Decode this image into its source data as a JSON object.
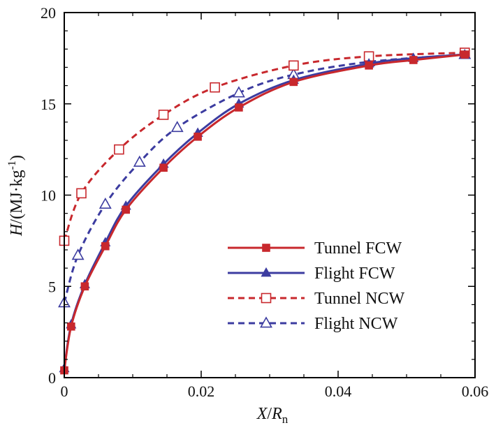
{
  "chart_data": {
    "type": "line",
    "title": "",
    "xlim": [
      0,
      0.06
    ],
    "ylim": [
      0,
      20
    ],
    "x_ticks": [
      0,
      0.02,
      0.04,
      0.06
    ],
    "x_tick_labels": [
      "0",
      "0.02",
      "0.04",
      "0.06"
    ],
    "y_ticks": [
      0,
      5,
      10,
      15,
      20
    ],
    "y_tick_labels": [
      "0",
      "5",
      "10",
      "15",
      "20"
    ],
    "xlabel": {
      "italic": "X",
      "sep": "/",
      "italic2": "R",
      "sub": "n"
    },
    "ylabel": {
      "italic": "H",
      "text": "/(MJ·kg",
      "sup": "-1",
      "close": ")"
    },
    "grid": false,
    "legend_position": "lower-right",
    "series": [
      {
        "name": "Tunnel FCW",
        "color": "#c8282d",
        "dash": "solid",
        "marker": "square-filled",
        "x": [
          0.0,
          0.001,
          0.003,
          0.006,
          0.009,
          0.0145,
          0.0195,
          0.0255,
          0.0335,
          0.0445,
          0.051,
          0.0585
        ],
        "y": [
          0.4,
          2.8,
          5.0,
          7.2,
          9.2,
          11.5,
          13.2,
          14.8,
          16.2,
          17.1,
          17.4,
          17.7
        ]
      },
      {
        "name": "Flight FCW",
        "color": "#3c3ca0",
        "dash": "solid",
        "marker": "triangle-filled",
        "x": [
          0.0,
          0.001,
          0.003,
          0.006,
          0.009,
          0.0145,
          0.0195,
          0.0255,
          0.0335,
          0.0445,
          0.051,
          0.0585
        ],
        "y": [
          0.5,
          2.9,
          5.1,
          7.4,
          9.4,
          11.7,
          13.4,
          15.0,
          16.3,
          17.2,
          17.5,
          17.7
        ]
      },
      {
        "name": "Tunnel NCW",
        "color": "#c8282d",
        "dash": "dashed",
        "marker": "square-open",
        "x": [
          0.0,
          0.0025,
          0.008,
          0.0145,
          0.022,
          0.0335,
          0.0445,
          0.0585
        ],
        "y": [
          7.5,
          10.1,
          12.5,
          14.4,
          15.9,
          17.1,
          17.6,
          17.8
        ]
      },
      {
        "name": "Flight NCW",
        "color": "#3c3ca0",
        "dash": "dashed",
        "marker": "triangle-open",
        "x": [
          0.0,
          0.002,
          0.006,
          0.011,
          0.0165,
          0.0255,
          0.0335,
          0.0445,
          0.0585
        ],
        "y": [
          4.1,
          6.7,
          9.5,
          11.8,
          13.7,
          15.6,
          16.6,
          17.3,
          17.7
        ]
      }
    ]
  }
}
